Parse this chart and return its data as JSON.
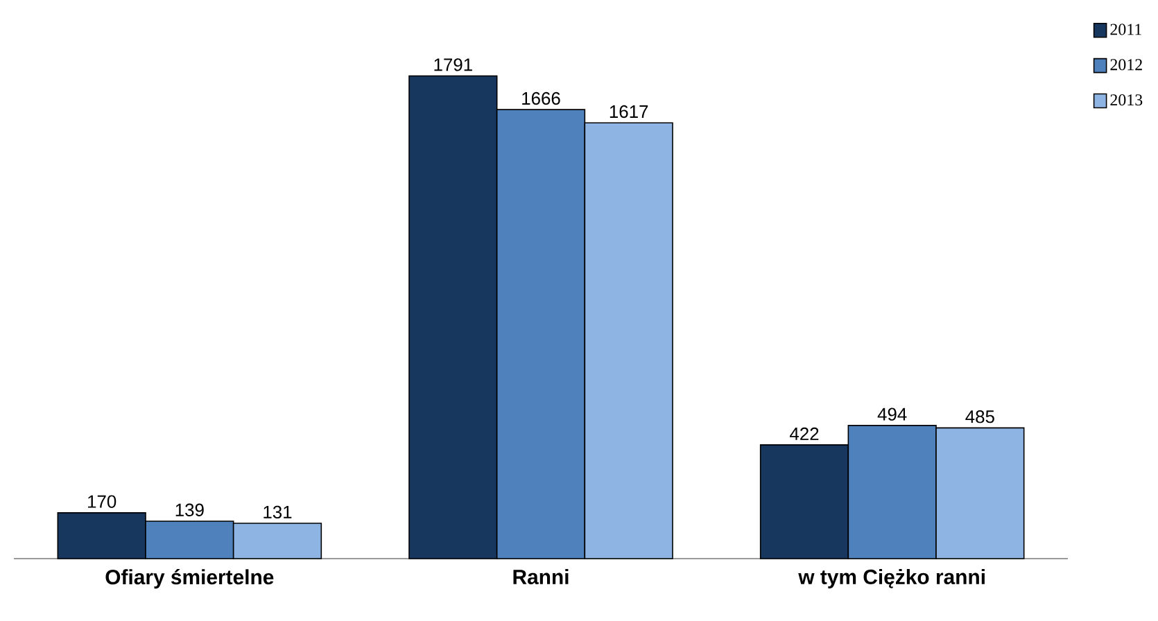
{
  "chart_data": {
    "type": "bar",
    "categories": [
      "Ofiary śmiertelne",
      "Ranni",
      "w tym Ciężko ranni"
    ],
    "series": [
      {
        "name": "2011",
        "color": "#17375e",
        "values": [
          170,
          1791,
          422
        ]
      },
      {
        "name": "2012",
        "color": "#4f81bd",
        "values": [
          139,
          1666,
          494
        ]
      },
      {
        "name": "2013",
        "color": "#8eb4e3",
        "values": [
          131,
          1617,
          485
        ]
      }
    ],
    "data_labels": true,
    "legend": "top right"
  }
}
